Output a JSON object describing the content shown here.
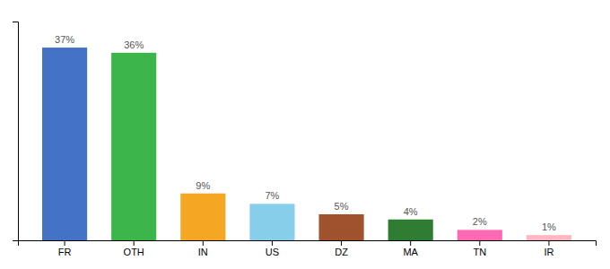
{
  "chart_data": {
    "type": "bar",
    "categories": [
      "FR",
      "OTH",
      "IN",
      "US",
      "DZ",
      "MA",
      "TN",
      "IR"
    ],
    "values": [
      37,
      36,
      9,
      7,
      5,
      4,
      2,
      1
    ],
    "value_labels": [
      "37%",
      "36%",
      "9%",
      "7%",
      "5%",
      "4%",
      "2%",
      "1%"
    ],
    "colors": [
      "#4472c4",
      "#3cb54a",
      "#f5a623",
      "#87ceeb",
      "#a0522d",
      "#2e7d32",
      "#ff69b4",
      "#ffb6c1"
    ],
    "ylim": [
      0,
      42
    ],
    "data_labels": true,
    "tick_labels": "x"
  }
}
